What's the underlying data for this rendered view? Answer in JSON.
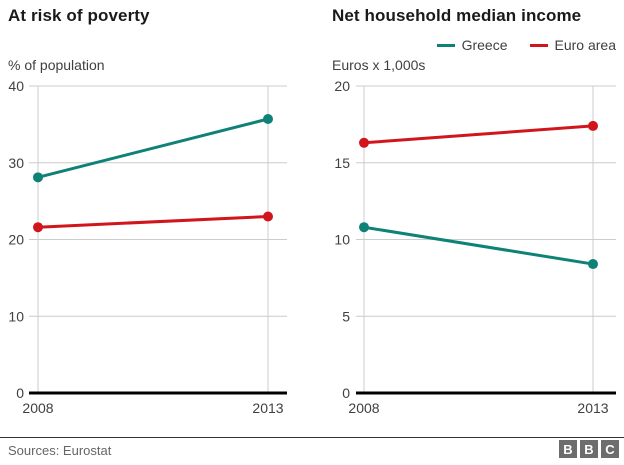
{
  "chart_data": [
    {
      "type": "line",
      "title": "At risk of poverty",
      "unit_label": "% of population",
      "categories": [
        "2008",
        "2013"
      ],
      "series": [
        {
          "name": "Greece",
          "color": "#0E8276",
          "values": [
            28.1,
            35.7
          ]
        },
        {
          "name": "Euro area",
          "color": "#D0161C",
          "values": [
            21.6,
            23.0
          ]
        }
      ],
      "ylim": [
        0,
        40
      ],
      "yticks": [
        0,
        10,
        20,
        30,
        40
      ],
      "grid": true,
      "legend_position": "shared top-right"
    },
    {
      "type": "line",
      "title": "Net household median income",
      "unit_label": "Euros x 1,000s",
      "categories": [
        "2008",
        "2013"
      ],
      "series": [
        {
          "name": "Greece",
          "color": "#0E8276",
          "values": [
            10.8,
            8.4
          ]
        },
        {
          "name": "Euro area",
          "color": "#D0161C",
          "values": [
            16.3,
            17.4
          ]
        }
      ],
      "ylim": [
        0,
        20
      ],
      "yticks": [
        0,
        5,
        10,
        15,
        20
      ],
      "grid": true,
      "legend_position": "shared top-right"
    }
  ],
  "legend": {
    "items": [
      {
        "label": "Greece",
        "color": "#0E8276"
      },
      {
        "label": "Euro area",
        "color": "#D0161C"
      }
    ]
  },
  "footer": {
    "sources": "Sources: Eurostat",
    "logo_letters": [
      "B",
      "B",
      "C"
    ]
  },
  "style": {
    "grid_color": "#cccccc",
    "axis_text_color": "#404040",
    "baseline_color": "#000000",
    "title_color": "#1a1a1a",
    "footer_text_color": "#666666",
    "divider_color": "#333333",
    "logo_color": "#6d6d6d",
    "background": "#ffffff"
  }
}
